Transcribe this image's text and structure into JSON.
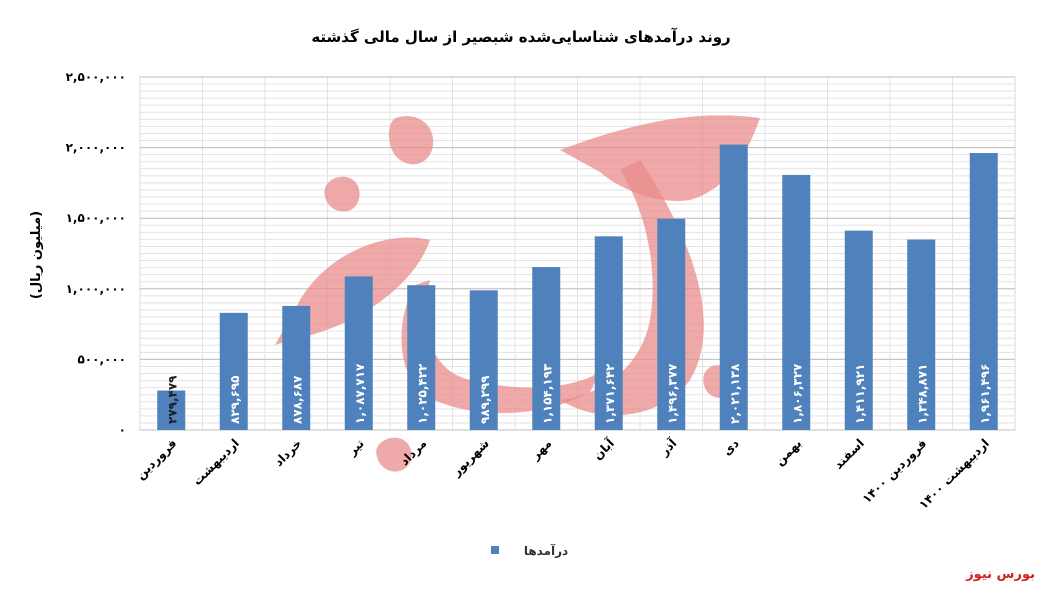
{
  "chart_data": {
    "type": "bar",
    "title": "روند درآمدهای شناسایی‌شده شبصیر از سال مالی گذشته",
    "ylabel": "(میلیون ریال)",
    "xlabel": "",
    "categories": [
      "فروردین",
      "اردیبهشت",
      "خرداد",
      "تیر",
      "مرداد",
      "شهریور",
      "مهر",
      "آبان",
      "آذر",
      "دی",
      "بهمن",
      "اسفند",
      "فروردین ۱۴۰۰",
      "اردیبهشت ۱۴۰۰"
    ],
    "series": [
      {
        "name": "درآمدها",
        "values": [
          279479,
          829695,
          878687,
          1087717,
          1025422,
          989299,
          1154193,
          1371642,
          1496377,
          2021138,
          1806327,
          1411921,
          1348871,
          1961496
        ],
        "labels": [
          "۲۷۹,۴۷۹",
          "۸۲۹,۶۹۵",
          "۸۷۸,۶۸۷",
          "۱,۰۸۷,۷۱۷",
          "۱,۰۲۵,۴۲۲",
          "۹۸۹,۲۹۹",
          "۱,۱۵۴,۱۹۳",
          "۱,۳۷۱,۶۴۲",
          "۱,۴۹۶,۳۷۷",
          "۲,۰۲۱,۱۳۸",
          "۱,۸۰۶,۳۲۷",
          "۱,۴۱۱,۹۲۱",
          "۱,۳۴۸,۸۷۱",
          "۱,۹۶۱,۴۹۶"
        ]
      }
    ],
    "ylim": [
      0,
      2500000
    ],
    "yticks": [
      0,
      500000,
      1000000,
      1500000,
      2000000,
      2500000
    ],
    "ytick_labels": [
      "۰",
      "۵۰۰,۰۰۰",
      "۱,۰۰۰,۰۰۰",
      "۱,۵۰۰,۰۰۰",
      "۲,۰۰۰,۰۰۰",
      "۲,۵۰۰,۰۰۰"
    ],
    "grid": true,
    "legend_position": "bottom",
    "bar_color": "#4f81bd"
  },
  "source": "بورس نیوز"
}
